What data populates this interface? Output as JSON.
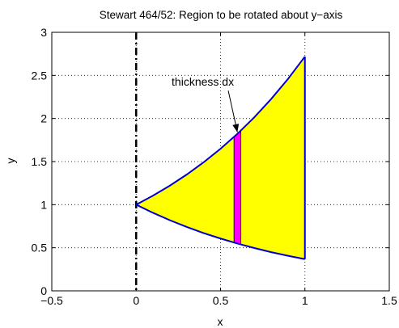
{
  "chart_data": {
    "type": "area",
    "title": "Stewart 464/52: Region to be rotated about y−axis",
    "xlabel": "x",
    "ylabel": "y",
    "xlim": [
      -0.5,
      1.5
    ],
    "ylim": [
      0,
      3
    ],
    "grid": true,
    "x_ticks": [
      -0.5,
      0,
      0.5,
      1,
      1.5
    ],
    "x_tick_labels": [
      "−0.5",
      "0",
      "0.5",
      "1",
      "1.5"
    ],
    "y_ticks": [
      0,
      0.5,
      1,
      1.5,
      2,
      2.5,
      3
    ],
    "y_tick_labels": [
      "0",
      "0.5",
      "1",
      "1.5",
      "2",
      "2.5",
      "3"
    ],
    "region": {
      "upper_curve": {
        "x": [
          0,
          0.1,
          0.2,
          0.3,
          0.4,
          0.5,
          0.6,
          0.7,
          0.8,
          0.9,
          1.0
        ],
        "y": [
          1.0,
          1.105,
          1.221,
          1.35,
          1.492,
          1.649,
          1.822,
          2.014,
          2.226,
          2.46,
          2.718
        ]
      },
      "lower_curve": {
        "x": [
          0,
          0.1,
          0.2,
          0.3,
          0.4,
          0.5,
          0.6,
          0.7,
          0.8,
          0.9,
          1.0
        ],
        "y": [
          1.0,
          0.905,
          0.819,
          0.741,
          0.67,
          0.607,
          0.549,
          0.497,
          0.449,
          0.407,
          0.368
        ]
      },
      "right_boundary_x": 1.0,
      "fill_color": "#ffff00",
      "edge_color": "#0000cc"
    },
    "strip": {
      "x_left": 0.58,
      "x_right": 0.62,
      "fill_color": "#ff00ff",
      "edge_color": "#0000cc"
    },
    "axis_of_rotation": {
      "x": 0,
      "style": "dash-dot",
      "color": "#000000"
    },
    "annotation": {
      "text": "thickness dx",
      "text_x": 0.21,
      "text_y": 2.38,
      "arrow_to_x": 0.6,
      "arrow_to_y": 1.84
    }
  }
}
